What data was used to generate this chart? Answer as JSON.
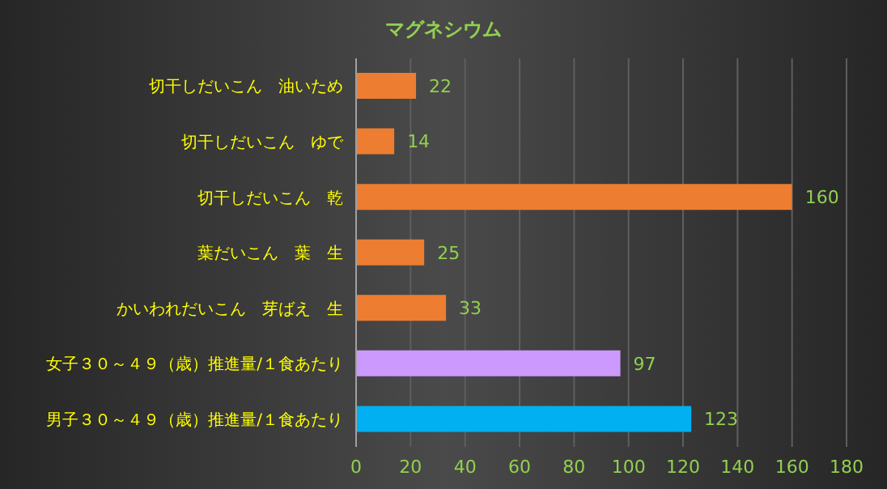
{
  "chart_data": {
    "type": "bar",
    "orientation": "horizontal",
    "title": "マグネシウム",
    "categories": [
      "切干しだいこん　油いため",
      "切干しだいこん　ゆで",
      "切干しだいこん　乾",
      "葉だいこん　葉　生",
      "かいわれだいこん　芽ばえ　生",
      "女子３０～４９（歳）推進量/１食あたり",
      "男子３０～４９（歳）推進量/１食あたり"
    ],
    "values": [
      22,
      14,
      160,
      25,
      33,
      97,
      123
    ],
    "colors": [
      "#ed7d31",
      "#ed7d31",
      "#ed7d31",
      "#ed7d31",
      "#ed7d31",
      "#cc99ff",
      "#00b0f0"
    ],
    "xlim": [
      0,
      180
    ],
    "xticks": [
      0,
      20,
      40,
      60,
      80,
      100,
      120,
      140,
      160,
      180
    ],
    "grid": "x",
    "data_labels": true
  }
}
